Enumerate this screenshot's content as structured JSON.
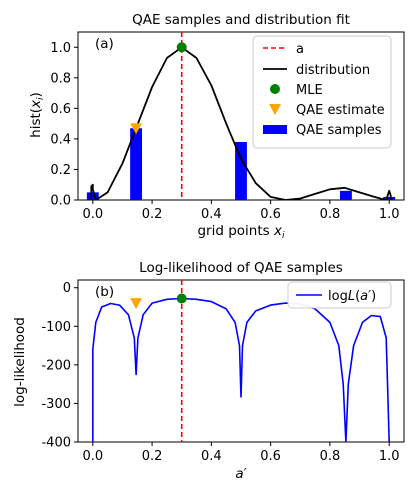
{
  "chart_data": [
    {
      "type": "bar",
      "panel_label": "(a)",
      "title": "QAE samples and distribution fit",
      "xlabel": "grid points x_i",
      "ylabel": "hist(x_i)",
      "xlim": [
        -0.05,
        1.05
      ],
      "ylim": [
        0,
        1.1
      ],
      "xticks": [
        "0.0",
        "0.2",
        "0.4",
        "0.6",
        "0.8",
        "1.0"
      ],
      "yticks": [
        "0.0",
        "0.2",
        "0.4",
        "0.6",
        "0.8",
        "1.0"
      ],
      "legend": {
        "placement": "top-right",
        "entries": [
          "a",
          "distribution",
          "MLE",
          "QAE estimate",
          "QAE samples"
        ]
      },
      "a_line": 0.3,
      "bars": [
        {
          "x": 0.0,
          "value": 0.05
        },
        {
          "x": 0.146,
          "value": 0.47
        },
        {
          "x": 0.5,
          "value": 0.38
        },
        {
          "x": 0.854,
          "value": 0.06
        },
        {
          "x": 1.0,
          "value": 0.02
        }
      ],
      "bar_width": 0.04,
      "mle": {
        "x": 0.3,
        "y": 1.0
      },
      "qae_estimate": {
        "x": 0.146,
        "y": 0.47
      },
      "distribution": {
        "samples": [
          [
            -0.005,
            0.0
          ],
          [
            -0.005,
            0.09
          ],
          [
            0.0,
            0.1
          ],
          [
            0.0,
            0.07
          ],
          [
            0.01,
            0.0
          ],
          [
            0.05,
            0.05
          ],
          [
            0.1,
            0.24
          ],
          [
            0.15,
            0.49
          ],
          [
            0.2,
            0.74
          ],
          [
            0.25,
            0.93
          ],
          [
            0.3,
            1.0
          ],
          [
            0.35,
            0.93
          ],
          [
            0.4,
            0.75
          ],
          [
            0.45,
            0.5
          ],
          [
            0.5,
            0.27
          ],
          [
            0.55,
            0.11
          ],
          [
            0.6,
            0.02
          ],
          [
            0.65,
            0.0
          ],
          [
            0.7,
            0.01
          ],
          [
            0.75,
            0.04
          ],
          [
            0.8,
            0.07
          ],
          [
            0.85,
            0.08
          ],
          [
            0.9,
            0.05
          ],
          [
            0.95,
            0.02
          ],
          [
            0.99,
            0.0
          ],
          [
            1.0,
            0.06
          ],
          [
            1.005,
            0.03
          ],
          [
            1.005,
            0.0
          ]
        ]
      },
      "colors": {
        "a_line": "#ff0000",
        "distribution": "#000000",
        "mle": "#008000",
        "qae_estimate": "#ffa500",
        "bars": "#0000ff"
      }
    },
    {
      "type": "line",
      "panel_label": "(b)",
      "title": "Log-likelihood of QAE samples",
      "xlabel": "a'",
      "ylabel": "log-likelihood",
      "xlim": [
        -0.05,
        1.05
      ],
      "ylim": [
        -400,
        20
      ],
      "xticks": [
        "0.0",
        "0.2",
        "0.4",
        "0.6",
        "0.8",
        "1.0"
      ],
      "yticks": [
        "0",
        "-100",
        "-200",
        "-300",
        "-400"
      ],
      "legend": {
        "placement": "top-right",
        "entries": [
          "logL(a')"
        ]
      },
      "a_line": 0.3,
      "mle": {
        "x": 0.3,
        "y": -28
      },
      "qae_estimate": {
        "x": 0.146,
        "y": -40
      },
      "series": [
        {
          "name": "logL(a')",
          "values": [
            [
              0.0,
              -400
            ],
            [
              0.0,
              -160
            ],
            [
              0.01,
              -90
            ],
            [
              0.03,
              -50
            ],
            [
              0.06,
              -41
            ],
            [
              0.09,
              -45
            ],
            [
              0.12,
              -70
            ],
            [
              0.14,
              -130
            ],
            [
              0.146,
              -225
            ],
            [
              0.152,
              -130
            ],
            [
              0.17,
              -70
            ],
            [
              0.2,
              -40
            ],
            [
              0.25,
              -30
            ],
            [
              0.3,
              -28
            ],
            [
              0.35,
              -30
            ],
            [
              0.4,
              -36
            ],
            [
              0.45,
              -55
            ],
            [
              0.48,
              -90
            ],
            [
              0.495,
              -150
            ],
            [
              0.5,
              -283
            ],
            [
              0.505,
              -150
            ],
            [
              0.52,
              -90
            ],
            [
              0.55,
              -60
            ],
            [
              0.6,
              -45
            ],
            [
              0.65,
              -40
            ],
            [
              0.7,
              -42
            ],
            [
              0.75,
              -55
            ],
            [
              0.8,
              -90
            ],
            [
              0.83,
              -150
            ],
            [
              0.845,
              -250
            ],
            [
              0.854,
              -400
            ],
            [
              0.862,
              -250
            ],
            [
              0.88,
              -150
            ],
            [
              0.91,
              -90
            ],
            [
              0.94,
              -72
            ],
            [
              0.97,
              -75
            ],
            [
              0.99,
              -130
            ],
            [
              1.0,
              -400
            ]
          ]
        }
      ],
      "colors": {
        "a_line": "#ff0000",
        "series": "#0000ff",
        "mle": "#008000",
        "qae_estimate": "#ffa500"
      }
    }
  ]
}
